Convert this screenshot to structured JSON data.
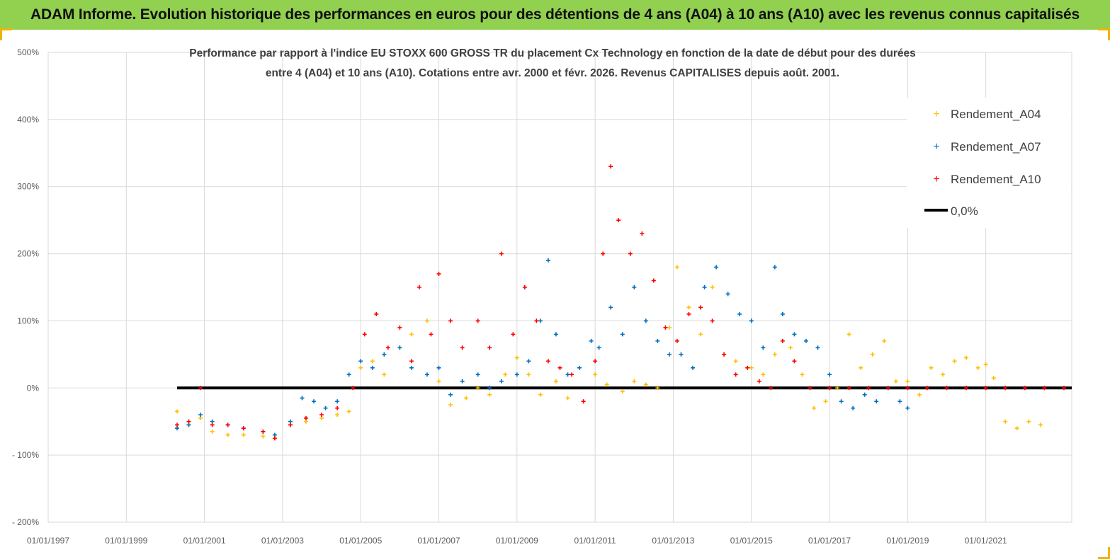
{
  "header": {
    "banner_title": "ADAM Informe. Evolution historique des performances en euros pour des détentions de 4 ans (A04) à 10 ans (A10) avec les revenus connus capitalisés"
  },
  "colors": {
    "banner_bg": "#92d050",
    "A04": "#ffc000",
    "A07": "#0070c0",
    "A10": "#ff0000",
    "zero_line": "#000000"
  },
  "chart_data": {
    "type": "scatter",
    "title_lines": [
      "Performance par rapport à l'indice EU STOXX 600 GROSS TR  du placement Cx Technology  en fonction de la date de début pour des durées",
      "entre 4 (A04) et 10 ans (A10). Cotations entre avr. 2000 et févr. 2026. Revenus CAPITALISES depuis août. 2001."
    ],
    "y_ticks": [
      "500%",
      "400%",
      "300%",
      "200%",
      "100%",
      "0%",
      "- 100%",
      "- 200%"
    ],
    "y_tick_values": [
      500,
      400,
      300,
      200,
      100,
      0,
      -100,
      -200
    ],
    "ylim": [
      -200,
      500
    ],
    "x_ticks": [
      "01/01/1997",
      "01/01/1999",
      "01/01/2001",
      "01/01/2003",
      "01/01/2005",
      "01/01/2007",
      "01/01/2009",
      "01/01/2011",
      "01/01/2013",
      "01/01/2015",
      "01/01/2017",
      "01/01/2019",
      "01/01/2021"
    ],
    "x_tick_values": [
      1997,
      1999,
      2001,
      2003,
      2005,
      2007,
      2009,
      2011,
      2013,
      2015,
      2017,
      2019,
      2021
    ],
    "xlim": [
      1997,
      2023.2
    ],
    "grid": true,
    "legend": {
      "placement": "top-right",
      "entries": [
        "Rendement_A04",
        "Rendement_A07",
        "Rendement_A10",
        "0,0%"
      ]
    },
    "series": [
      {
        "name": "Rendement_A04",
        "marker": "+",
        "x": [
          2000.3,
          2000.6,
          2000.9,
          2001.2,
          2001.6,
          2002.0,
          2002.5,
          2002.8,
          2003.2,
          2003.6,
          2004.0,
          2004.4,
          2004.7,
          2005.0,
          2005.3,
          2005.6,
          2006.0,
          2006.3,
          2006.7,
          2007.0,
          2007.3,
          2007.7,
          2008.0,
          2008.3,
          2008.7,
          2009.0,
          2009.3,
          2009.6,
          2010.0,
          2010.3,
          2010.7,
          2011.0,
          2011.3,
          2011.7,
          2012.0,
          2012.3,
          2012.6,
          2012.9,
          2013.1,
          2013.4,
          2013.7,
          2014.0,
          2014.3,
          2014.6,
          2015.0,
          2015.3,
          2015.6,
          2016.0,
          2016.3,
          2016.6,
          2016.9,
          2017.2,
          2017.5,
          2017.8,
          2018.1,
          2018.4,
          2018.7,
          2019.0,
          2019.3,
          2019.6,
          2019.9,
          2020.2,
          2020.5,
          2020.8,
          2021.0,
          2021.2,
          2021.5,
          2021.8,
          2022.1,
          2022.4
        ],
        "y": [
          -35,
          -55,
          -45,
          -65,
          -70,
          -70,
          -72,
          -75,
          -55,
          -50,
          -45,
          -40,
          -35,
          30,
          40,
          20,
          60,
          80,
          100,
          10,
          -25,
          -15,
          0,
          -10,
          20,
          45,
          20,
          -10,
          10,
          -15,
          -20,
          20,
          5,
          -5,
          10,
          5,
          0,
          90,
          180,
          120,
          80,
          150,
          50,
          40,
          30,
          20,
          50,
          60,
          20,
          -30,
          -20,
          0,
          80,
          30,
          50,
          70,
          10,
          10,
          -10,
          30,
          20,
          40,
          45,
          30,
          35,
          15,
          -50,
          -60,
          -50,
          -55
        ]
      },
      {
        "name": "Rendement_A07",
        "marker": "+",
        "x": [
          2000.3,
          2000.6,
          2000.9,
          2001.2,
          2001.6,
          2002.0,
          2002.5,
          2002.8,
          2003.2,
          2003.5,
          2003.8,
          2004.1,
          2004.4,
          2004.7,
          2005.0,
          2005.3,
          2005.6,
          2006.0,
          2006.3,
          2006.7,
          2007.0,
          2007.3,
          2007.6,
          2008.0,
          2008.3,
          2008.6,
          2009.0,
          2009.3,
          2009.6,
          2009.8,
          2010.0,
          2010.3,
          2010.6,
          2010.9,
          2011.1,
          2011.4,
          2011.7,
          2012.0,
          2012.3,
          2012.6,
          2012.9,
          2013.2,
          2013.5,
          2013.8,
          2014.1,
          2014.4,
          2014.7,
          2015.0,
          2015.3,
          2015.6,
          2015.8,
          2016.1,
          2016.4,
          2016.7,
          2017.0,
          2017.3,
          2017.6,
          2017.9,
          2018.2,
          2018.5,
          2018.8,
          2019.0
        ],
        "y": [
          -60,
          -55,
          -40,
          -50,
          -55,
          -60,
          -65,
          -70,
          -50,
          -15,
          -20,
          -30,
          -20,
          20,
          40,
          30,
          50,
          60,
          30,
          20,
          30,
          -10,
          10,
          20,
          0,
          10,
          20,
          40,
          100,
          190,
          80,
          20,
          30,
          70,
          60,
          120,
          80,
          150,
          100,
          70,
          50,
          50,
          30,
          150,
          180,
          140,
          110,
          100,
          60,
          180,
          110,
          80,
          70,
          60,
          20,
          -20,
          -30,
          -10,
          -20,
          0,
          -20,
          -30
        ]
      },
      {
        "name": "Rendement_A10",
        "marker": "+",
        "x": [
          2000.3,
          2000.6,
          2000.9,
          2001.2,
          2001.6,
          2002.0,
          2002.5,
          2002.8,
          2003.2,
          2003.6,
          2004.0,
          2004.4,
          2004.8,
          2005.1,
          2005.4,
          2005.7,
          2006.0,
          2006.3,
          2006.5,
          2006.8,
          2007.0,
          2007.3,
          2007.6,
          2008.0,
          2008.3,
          2008.6,
          2008.9,
          2009.2,
          2009.5,
          2009.8,
          2010.1,
          2010.4,
          2010.7,
          2011.0,
          2011.2,
          2011.4,
          2011.6,
          2011.9,
          2012.2,
          2012.5,
          2012.8,
          2013.1,
          2013.4,
          2013.7,
          2014.0,
          2014.3,
          2014.6,
          2014.9,
          2015.2,
          2015.5,
          2015.8,
          2016.1,
          2016.5,
          2017.0,
          2017.5,
          2018.0,
          2018.5,
          2019.0,
          2019.5,
          2020.0,
          2020.5,
          2021.0,
          2021.5,
          2022.0,
          2022.5,
          2023.0
        ],
        "y": [
          -55,
          -50,
          0,
          -55,
          -55,
          -60,
          -65,
          -75,
          -55,
          -45,
          -40,
          -30,
          0,
          80,
          110,
          60,
          90,
          40,
          150,
          80,
          170,
          100,
          60,
          100,
          60,
          200,
          80,
          150,
          100,
          40,
          30,
          20,
          -20,
          40,
          200,
          330,
          250,
          200,
          230,
          160,
          90,
          70,
          110,
          120,
          100,
          50,
          20,
          30,
          10,
          0,
          70,
          40,
          0,
          0,
          0,
          0,
          0,
          0,
          0,
          0,
          0,
          0,
          0,
          0,
          0,
          0
        ]
      },
      {
        "name": "0,0%",
        "x": [
          2000.3,
          2023.2
        ],
        "y": [
          0,
          0
        ]
      }
    ]
  }
}
